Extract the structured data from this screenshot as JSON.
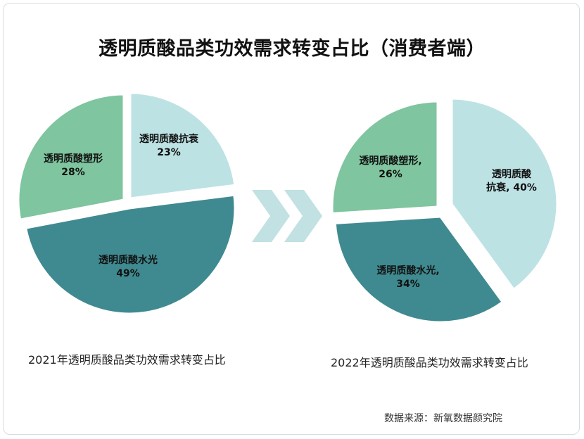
{
  "title": "透明质酸品类功效需求转变占比（消费者端）",
  "source": "数据来源：新氧数据颜究院",
  "colors": {
    "anti_aging": "#bde2e4",
    "shaping": "#7fc59f",
    "hydrating": "#3f8a90",
    "arrow": "#c1e1e3"
  },
  "chart_data": [
    {
      "type": "pie",
      "caption": "2021年透明质酸品类功效需求转变占比",
      "slices": [
        {
          "label_line1": "透明质酸抗衰",
          "label_line2": "23%",
          "value": 23,
          "color": "#bde2e4"
        },
        {
          "label_line1": "透明质酸水光",
          "label_line2": "49%",
          "value": 49,
          "color": "#3f8a90"
        },
        {
          "label_line1": "透明质酸塑形",
          "label_line2": "28%",
          "value": 28,
          "color": "#7fc59f"
        }
      ]
    },
    {
      "type": "pie",
      "caption": "2022年透明质酸品类功效需求转变占比",
      "slices": [
        {
          "label_line1": "透明质酸",
          "label_line2": "抗衰, 40%",
          "value": 40,
          "color": "#bde2e4"
        },
        {
          "label_line1": "透明质酸水光,",
          "label_line2": "34%",
          "value": 34,
          "color": "#3f8a90"
        },
        {
          "label_line1": "透明质酸塑形,",
          "label_line2": "26%",
          "value": 26,
          "color": "#7fc59f"
        }
      ]
    }
  ]
}
